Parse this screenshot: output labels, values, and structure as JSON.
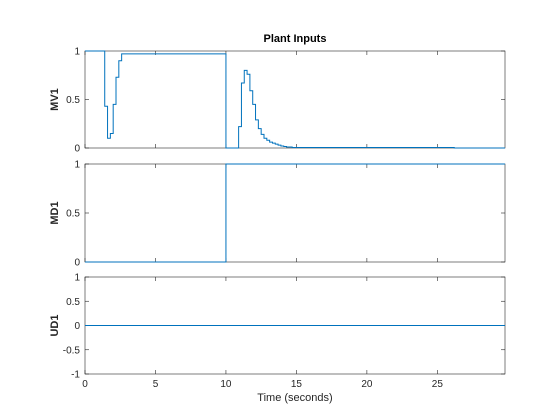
{
  "chart_data": {
    "type": "line",
    "title": "Plant Inputs",
    "xlabel": "Time (seconds)",
    "xlim": [
      0,
      29.8
    ],
    "xticks": [
      0,
      5,
      10,
      15,
      20,
      25
    ],
    "line_color": "#0072bd",
    "subplots": [
      {
        "ylabel": "MV1",
        "ylim": [
          0,
          1
        ],
        "yticks": [
          "0",
          "0.5",
          "1"
        ],
        "ytick_values": [
          0,
          0.5,
          1
        ],
        "step": true,
        "series": [
          {
            "x": [
              0,
              1.4,
              1.6,
              1.8,
              2.0,
              2.2,
              2.4,
              2.6,
              10.0,
              10.9,
              11.1,
              11.3,
              11.5,
              11.7,
              11.9,
              12.1,
              12.3,
              12.5,
              12.7,
              12.9,
              13.1,
              13.3,
              13.5,
              13.7,
              13.9,
              14.1,
              14.3,
              14.5,
              14.7,
              15.0,
              26.2,
              29.8
            ],
            "y": [
              1,
              0.43,
              0.1,
              0.15,
              0.45,
              0.73,
              0.9,
              0.97,
              0,
              0.22,
              0.67,
              0.8,
              0.76,
              0.59,
              0.45,
              0.29,
              0.2,
              0.14,
              0.1,
              0.08,
              0.06,
              0.05,
              0.04,
              0.03,
              0.02,
              0.015,
              0.01,
              0.01,
              0.005,
              0.005,
              0,
              0
            ]
          }
        ]
      },
      {
        "ylabel": "MD1",
        "ylim": [
          0,
          1
        ],
        "yticks": [
          "0",
          "0.5",
          "1"
        ],
        "ytick_values": [
          0,
          0.5,
          1
        ],
        "step": true,
        "series": [
          {
            "x": [
              0,
              10,
              29.8
            ],
            "y": [
              0,
              1,
              1
            ]
          }
        ]
      },
      {
        "ylabel": "UD1",
        "ylim": [
          -1,
          1
        ],
        "yticks": [
          "-1",
          "-0.5",
          "0",
          "0.5",
          "1"
        ],
        "ytick_values": [
          -1,
          -0.5,
          0,
          0.5,
          1
        ],
        "step": true,
        "series": [
          {
            "x": [
              0,
              29.8
            ],
            "y": [
              0,
              0
            ]
          }
        ]
      }
    ]
  }
}
